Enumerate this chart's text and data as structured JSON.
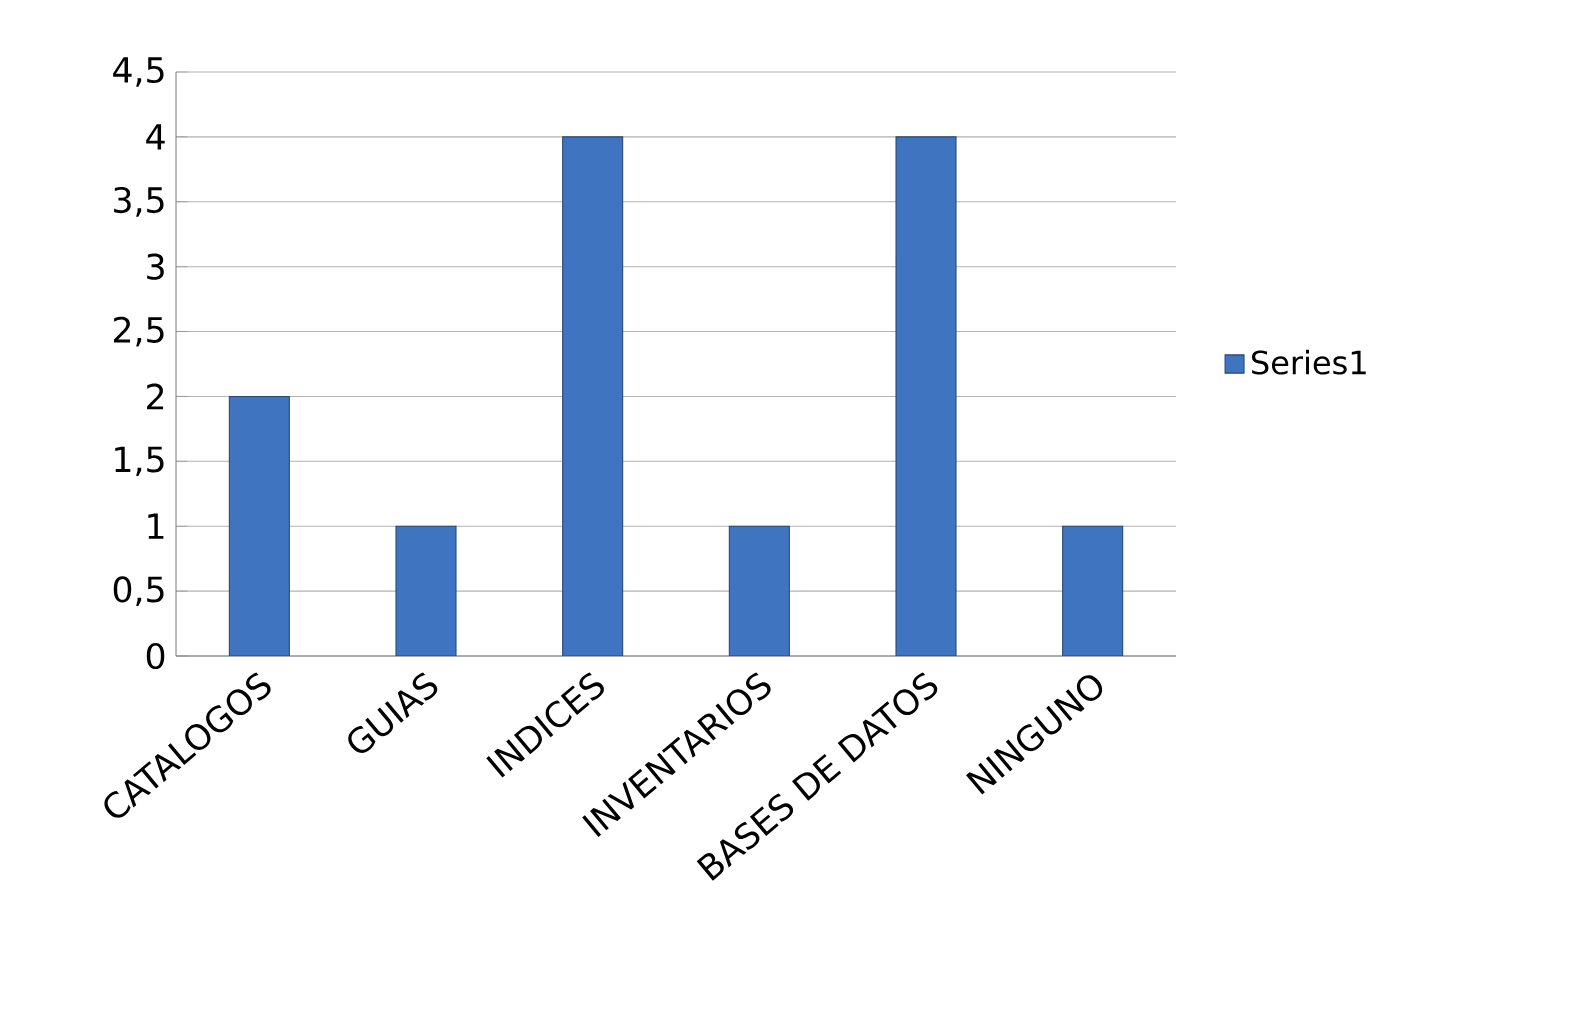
{
  "chart_data": {
    "type": "bar",
    "categories": [
      "CATALOGOS",
      "GUIAS",
      "INDICES",
      "INVENTARIOS",
      "BASES DE DATOS",
      "NINGUNO"
    ],
    "series": [
      {
        "name": "Series1",
        "color": "#3f75c0",
        "values": [
          2,
          1,
          4,
          1,
          4,
          1
        ]
      }
    ],
    "ylim": [
      0,
      4.5
    ],
    "yticks": [
      0,
      {
        "value": 0.5,
        "label": "0,5"
      },
      1,
      {
        "value": 1.5,
        "label": "1,5"
      },
      2,
      {
        "value": 2.5,
        "label": "2,5"
      },
      3,
      {
        "value": 3.5,
        "label": "3,5"
      },
      4,
      {
        "value": 4.5,
        "label": "4,5"
      }
    ],
    "grid": "y",
    "legend": "right"
  }
}
